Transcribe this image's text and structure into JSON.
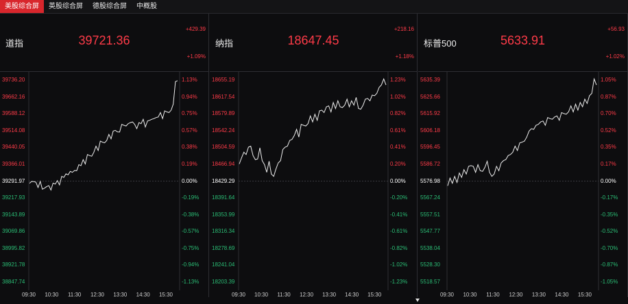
{
  "tabs": [
    {
      "label": "美股综合屏",
      "active": true
    },
    {
      "label": "英股综合屏",
      "active": false
    },
    {
      "label": "德股综合屏",
      "active": false
    },
    {
      "label": "中概股",
      "active": false
    }
  ],
  "colors": {
    "up": "#ff3b48",
    "down": "#2bbf76",
    "neutral": "#ffffff",
    "line": "#f0f0f0"
  },
  "time_labels": [
    "09:30",
    "10:30",
    "11:30",
    "12:30",
    "13:30",
    "14:30",
    "15:30"
  ],
  "panels": [
    {
      "name": "道指",
      "price": "39721.36",
      "change": "+429.39",
      "change_pct": "+1.09%",
      "left_labels": [
        "39736.20",
        "39662.16",
        "39588.12",
        "39514.08",
        "39440.05",
        "39366.01",
        "39291.97",
        "39217.93",
        "39143.89",
        "39069.86",
        "38995.82",
        "38921.78",
        "38847.74"
      ],
      "right_labels": [
        "1.13%",
        "0.94%",
        "0.75%",
        "0.57%",
        "0.38%",
        "0.19%",
        "0.00%",
        "-0.19%",
        "-0.38%",
        "-0.57%",
        "-0.75%",
        "-0.94%",
        "-1.13%"
      ]
    },
    {
      "name": "纳指",
      "price": "18647.45",
      "change": "+218.16",
      "change_pct": "+1.18%",
      "left_labels": [
        "18655.19",
        "18617.54",
        "18579.89",
        "18542.24",
        "18504.59",
        "18466.94",
        "18429.29",
        "18391.64",
        "18353.99",
        "18316.34",
        "18278.69",
        "18241.04",
        "18203.39"
      ],
      "right_labels": [
        "1.23%",
        "1.02%",
        "0.82%",
        "0.61%",
        "0.41%",
        "0.20%",
        "0.00%",
        "-0.20%",
        "-0.41%",
        "-0.61%",
        "-0.82%",
        "-1.02%",
        "-1.23%"
      ]
    },
    {
      "name": "标普500",
      "price": "5633.91",
      "change": "+56.93",
      "change_pct": "+1.02%",
      "left_labels": [
        "5635.39",
        "5625.66",
        "5615.92",
        "5606.18",
        "5596.45",
        "5586.72",
        "5576.98",
        "5567.24",
        "5557.51",
        "5547.77",
        "5538.04",
        "5528.30",
        "5518.57"
      ],
      "right_labels": [
        "1.05%",
        "0.87%",
        "0.70%",
        "0.52%",
        "0.35%",
        "0.17%",
        "0.00%",
        "-0.17%",
        "-0.35%",
        "-0.52%",
        "-0.70%",
        "-0.87%",
        "-1.05%"
      ]
    }
  ]
}
